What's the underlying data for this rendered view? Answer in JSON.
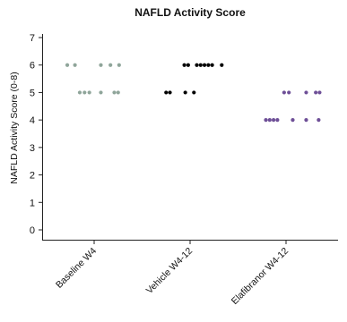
{
  "chart_data": {
    "type": "scatter",
    "title": "NAFLD Activity Score",
    "ylabel": "NAFLD Activity Score (0-8)",
    "xlabel": "",
    "ylim": [
      0,
      7
    ],
    "yticks": [
      0,
      1,
      2,
      3,
      4,
      5,
      6,
      7
    ],
    "categories": [
      "Baseline W4",
      "Vehicle W4-12",
      "Elafibranor W4-12"
    ],
    "grid": false,
    "series": [
      {
        "color": "#8fa59a",
        "points": [
          {
            "x": 0.72,
            "y": 6
          },
          {
            "x": 0.8,
            "y": 6
          },
          {
            "x": 1.07,
            "y": 6
          },
          {
            "x": 1.17,
            "y": 6
          },
          {
            "x": 1.26,
            "y": 6
          },
          {
            "x": 0.85,
            "y": 5
          },
          {
            "x": 0.9,
            "y": 5
          },
          {
            "x": 0.95,
            "y": 5
          },
          {
            "x": 1.07,
            "y": 5
          },
          {
            "x": 1.21,
            "y": 5
          },
          {
            "x": 1.25,
            "y": 5
          }
        ]
      },
      {
        "color": "#000000",
        "points": [
          {
            "x": 1.94,
            "y": 6
          },
          {
            "x": 1.98,
            "y": 6
          },
          {
            "x": 2.07,
            "y": 6
          },
          {
            "x": 2.11,
            "y": 6
          },
          {
            "x": 2.15,
            "y": 6
          },
          {
            "x": 2.19,
            "y": 6
          },
          {
            "x": 2.23,
            "y": 6
          },
          {
            "x": 2.33,
            "y": 6
          },
          {
            "x": 1.75,
            "y": 5
          },
          {
            "x": 1.79,
            "y": 5
          },
          {
            "x": 1.95,
            "y": 5
          },
          {
            "x": 2.04,
            "y": 5
          }
        ]
      },
      {
        "color": "#6e4f97",
        "points": [
          {
            "x": 2.98,
            "y": 5
          },
          {
            "x": 3.03,
            "y": 5
          },
          {
            "x": 3.21,
            "y": 5
          },
          {
            "x": 3.31,
            "y": 5
          },
          {
            "x": 3.35,
            "y": 5
          },
          {
            "x": 2.79,
            "y": 4
          },
          {
            "x": 2.83,
            "y": 4
          },
          {
            "x": 2.87,
            "y": 4
          },
          {
            "x": 2.91,
            "y": 4
          },
          {
            "x": 3.07,
            "y": 4
          },
          {
            "x": 3.21,
            "y": 4
          },
          {
            "x": 3.34,
            "y": 4
          }
        ]
      }
    ]
  }
}
